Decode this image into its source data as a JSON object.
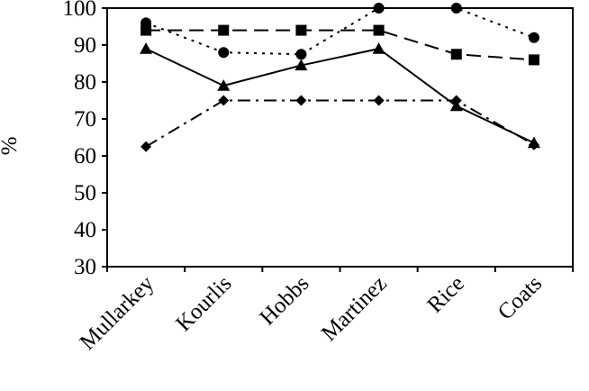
{
  "chart_data": {
    "type": "line",
    "ylabel": "%",
    "ylim": [
      30,
      100
    ],
    "yticks": [
      "30",
      "40",
      "50",
      "60",
      "70",
      "80",
      "90",
      "100"
    ],
    "categories": [
      "Mullarkey",
      "Kourlis",
      "Hobbs",
      "Martinez",
      "Rice",
      "Coats"
    ],
    "grid": false,
    "legend": "none",
    "series": [
      {
        "marker": "diamond",
        "line_style": "dash-dot",
        "color": "#000000",
        "values": [
          62.5,
          75,
          75,
          75,
          75,
          63
        ]
      },
      {
        "marker": "square",
        "line_style": "long-dash",
        "color": "#000000",
        "values": [
          94,
          94,
          94,
          94,
          87.5,
          86
        ]
      },
      {
        "marker": "triangle",
        "line_style": "solid",
        "color": "#000000",
        "values": [
          89,
          79,
          84.5,
          89,
          73.5,
          63.5
        ]
      },
      {
        "marker": "circle",
        "line_style": "dotted",
        "color": "#000000",
        "values": [
          96,
          88,
          87.5,
          100,
          100,
          92
        ]
      }
    ]
  }
}
